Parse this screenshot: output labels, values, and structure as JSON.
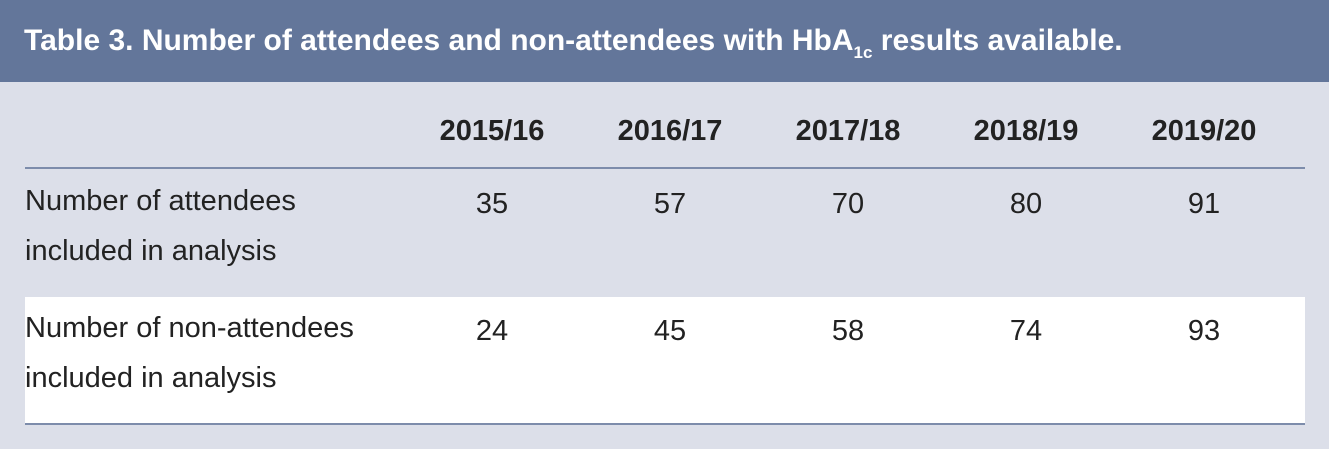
{
  "header": {
    "title": {
      "main": "Table 3. Number of attendees and non-attendees with HbA",
      "subscript": "1c",
      "end": " results available."
    }
  },
  "table": {
    "columns": [
      "2015/16",
      "2016/17",
      "2017/18",
      "2018/19",
      "2019/20"
    ],
    "rows": [
      {
        "label": [
          "Number of attendees",
          "included in analysis"
        ],
        "values": [
          35,
          57,
          70,
          80,
          91
        ]
      },
      {
        "label": [
          "Number of non-attendees",
          "included in analysis"
        ],
        "values": [
          24,
          45,
          58,
          74,
          93
        ]
      }
    ]
  }
}
